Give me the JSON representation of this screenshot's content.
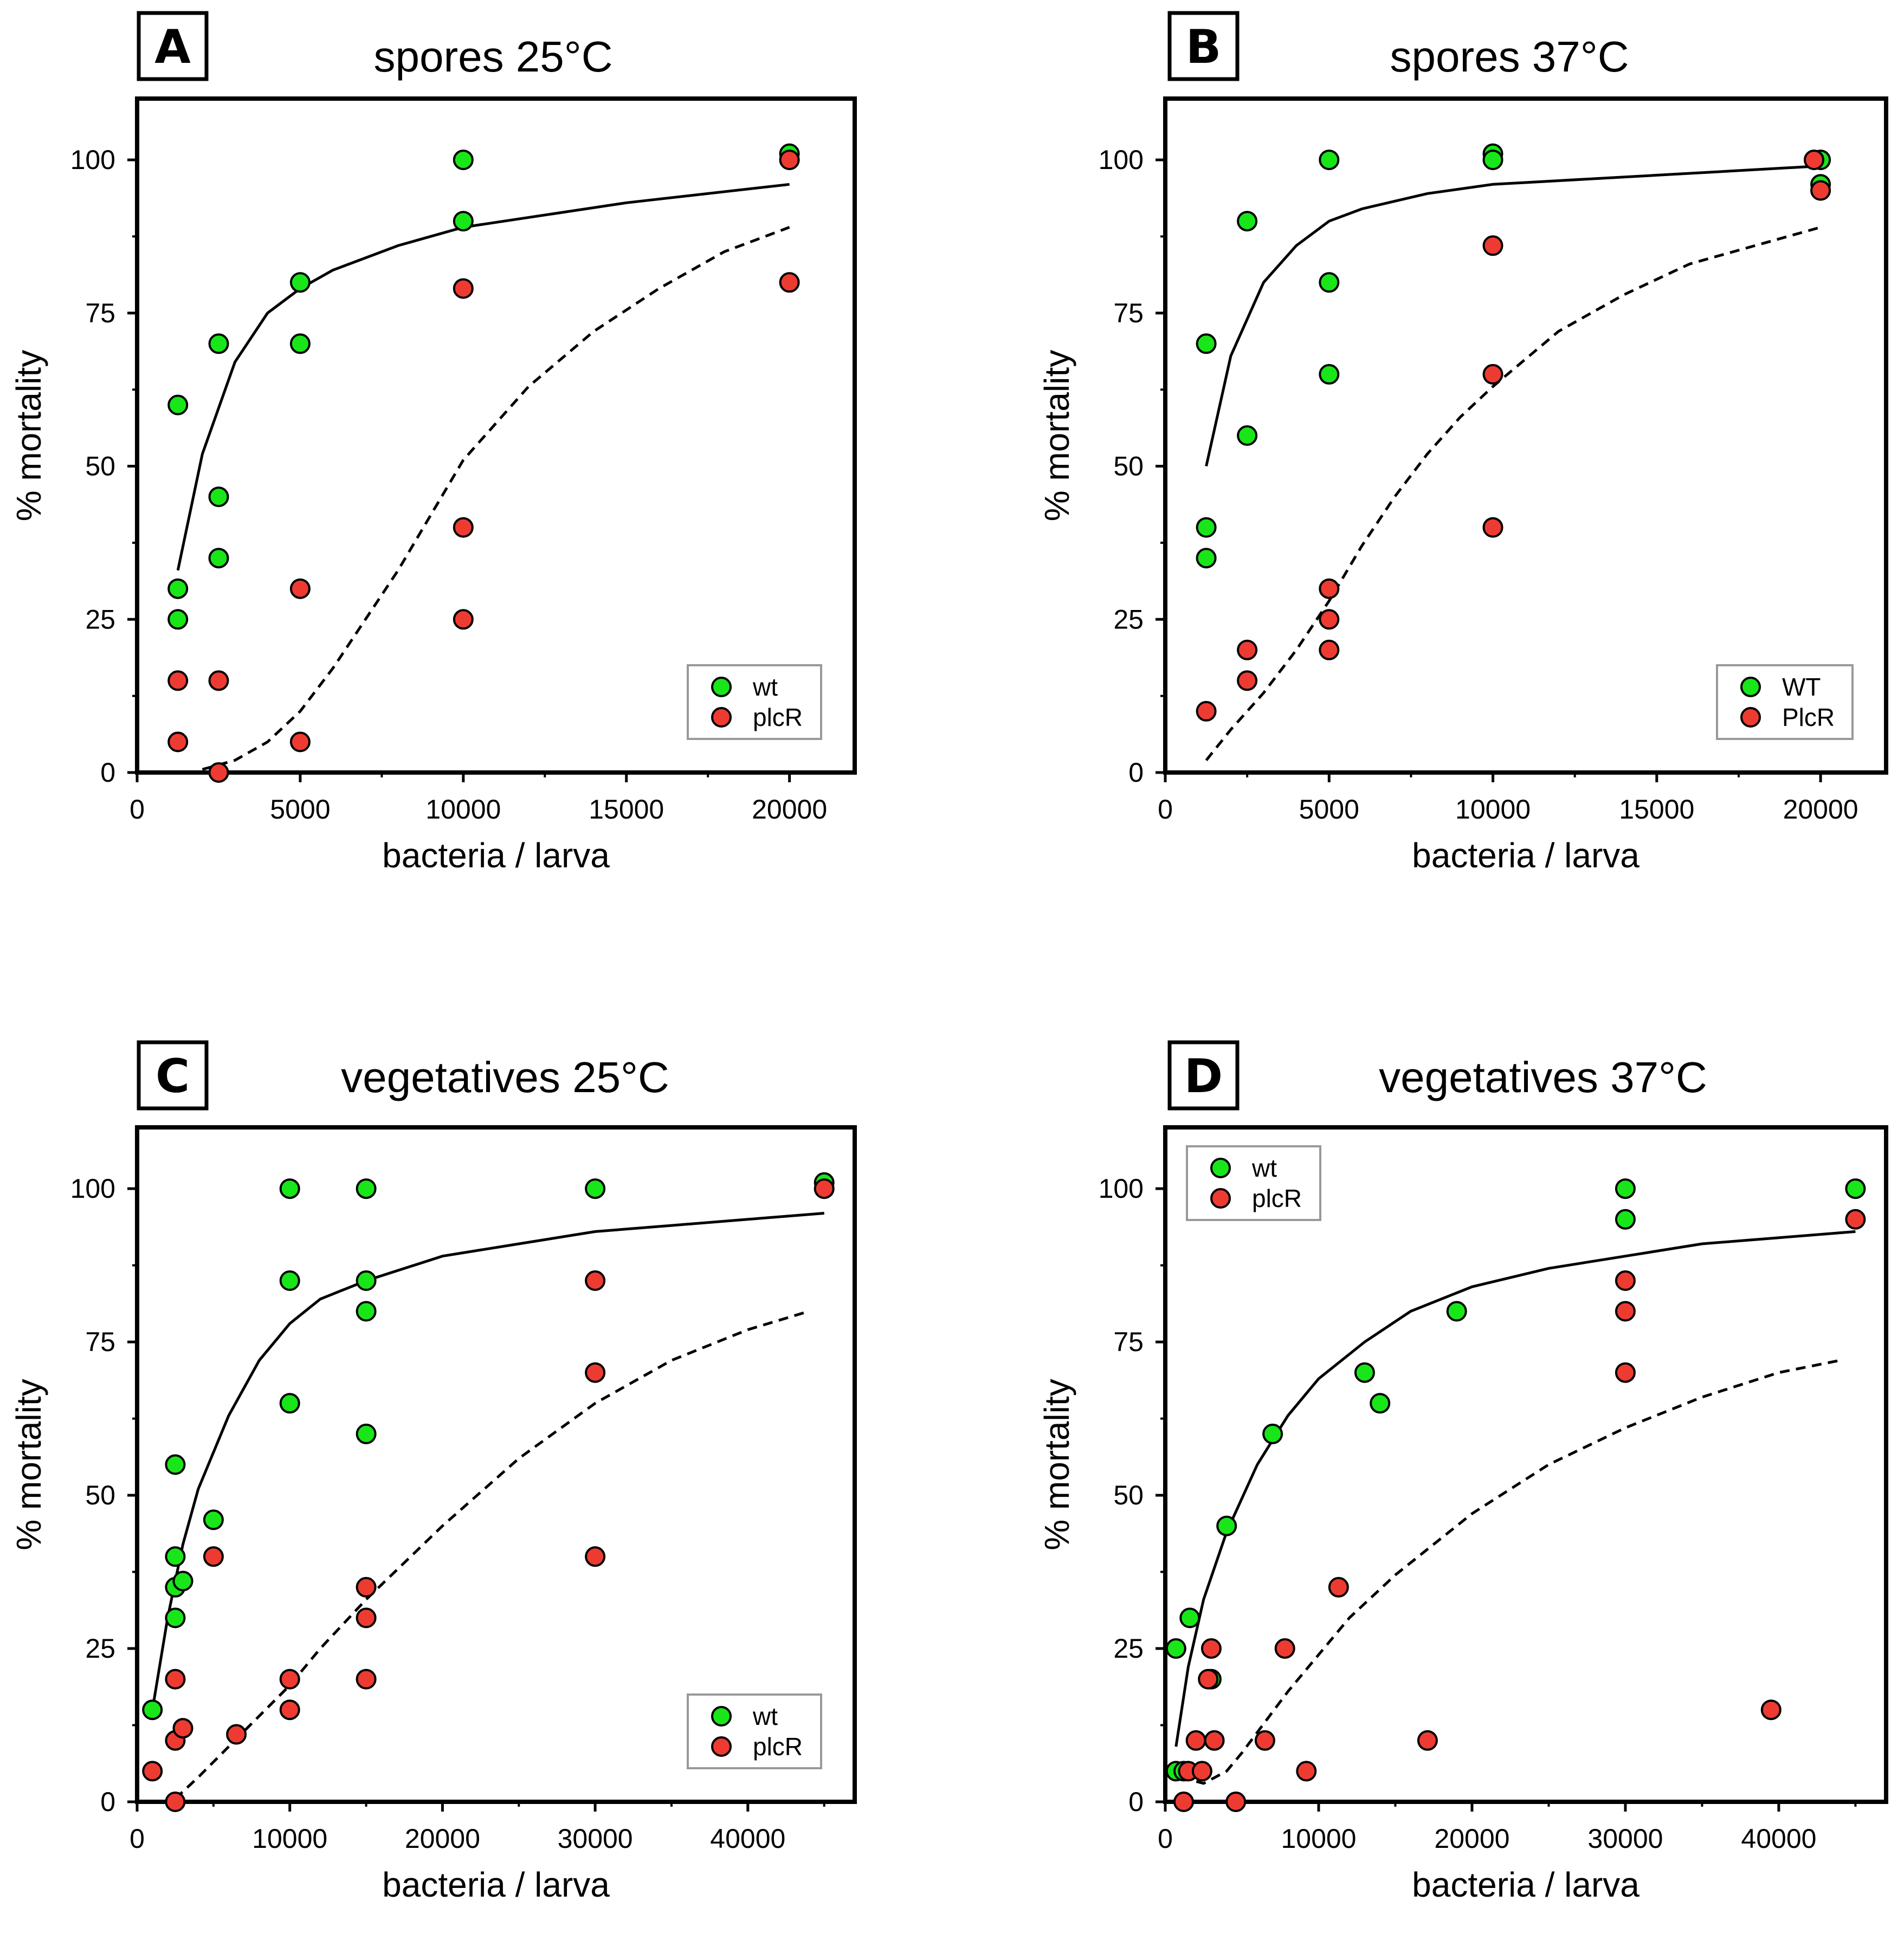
{
  "colors": {
    "wt": "#19e619",
    "mutant": "#ee3b32",
    "stroke": "#000000",
    "legend_border": "#999999"
  },
  "chart_data": [
    {
      "panel": "A",
      "type": "scatter",
      "title": "spores 25°C",
      "xlabel": "bacteria / larva",
      "ylabel": "% mortality",
      "xlim": [
        0,
        22000
      ],
      "ylim": [
        0,
        110
      ],
      "xticks": [
        0,
        5000,
        10000,
        15000,
        20000
      ],
      "yticks": [
        0,
        25,
        50,
        75,
        100
      ],
      "legend": {
        "position": "bottom-right",
        "labels": [
          "wt",
          "plcR"
        ]
      },
      "series": [
        {
          "name": "wt",
          "color_key": "wt",
          "points": [
            [
              1250,
              60
            ],
            [
              1250,
              30
            ],
            [
              1250,
              25
            ],
            [
              2500,
              70
            ],
            [
              2500,
              45
            ],
            [
              2500,
              35
            ],
            [
              5000,
              80
            ],
            [
              5000,
              70
            ],
            [
              10000,
              100
            ],
            [
              10000,
              90
            ],
            [
              20000,
              101
            ]
          ]
        },
        {
          "name": "plcR",
          "color_key": "mutant",
          "points": [
            [
              1250,
              15
            ],
            [
              1250,
              5
            ],
            [
              2500,
              15
            ],
            [
              2500,
              0
            ],
            [
              5000,
              30
            ],
            [
              5000,
              5
            ],
            [
              10000,
              79
            ],
            [
              10000,
              40
            ],
            [
              10000,
              25
            ],
            [
              20000,
              100
            ],
            [
              20000,
              80
            ]
          ]
        }
      ],
      "fits": [
        {
          "series": "wt",
          "style": "solid",
          "points": [
            [
              1250,
              33
            ],
            [
              2000,
              52
            ],
            [
              3000,
              67
            ],
            [
              4000,
              75
            ],
            [
              5000,
              79
            ],
            [
              6000,
              82
            ],
            [
              8000,
              86
            ],
            [
              10000,
              89
            ],
            [
              15000,
              93
            ],
            [
              20000,
              96
            ]
          ]
        },
        {
          "series": "plcR",
          "style": "dashed",
          "points": [
            [
              2000,
              0.5
            ],
            [
              3000,
              2
            ],
            [
              4000,
              5
            ],
            [
              5000,
              10
            ],
            [
              6000,
              17
            ],
            [
              7000,
              25
            ],
            [
              8000,
              33
            ],
            [
              9000,
              42
            ],
            [
              10000,
              51
            ],
            [
              12000,
              63
            ],
            [
              14000,
              72
            ],
            [
              16000,
              79
            ],
            [
              18000,
              85
            ],
            [
              20000,
              89
            ]
          ]
        }
      ]
    },
    {
      "panel": "B",
      "type": "scatter",
      "title": "spores 37°C",
      "xlabel": "bacteria / larva",
      "ylabel": "% mortality",
      "xlim": [
        0,
        22000
      ],
      "ylim": [
        0,
        110
      ],
      "xticks": [
        0,
        5000,
        10000,
        15000,
        20000
      ],
      "yticks": [
        0,
        25,
        50,
        75,
        100
      ],
      "legend": {
        "position": "bottom-right",
        "labels": [
          "WT",
          "PlcR"
        ]
      },
      "series": [
        {
          "name": "WT",
          "color_key": "wt",
          "points": [
            [
              1250,
              70
            ],
            [
              1250,
              40
            ],
            [
              1250,
              35
            ],
            [
              2500,
              90
            ],
            [
              2500,
              55
            ],
            [
              5000,
              100
            ],
            [
              5000,
              80
            ],
            [
              5000,
              65
            ],
            [
              10000,
              101
            ],
            [
              10000,
              100
            ],
            [
              20000,
              100
            ],
            [
              20000,
              96
            ]
          ]
        },
        {
          "name": "PlcR",
          "color_key": "mutant",
          "points": [
            [
              1250,
              10
            ],
            [
              2500,
              20
            ],
            [
              2500,
              15
            ],
            [
              5000,
              30
            ],
            [
              5000,
              25
            ],
            [
              5000,
              20
            ],
            [
              10000,
              86
            ],
            [
              10000,
              65
            ],
            [
              10000,
              40
            ],
            [
              19800,
              100
            ],
            [
              20000,
              95
            ]
          ]
        }
      ],
      "fits": [
        {
          "series": "WT",
          "style": "solid",
          "points": [
            [
              1250,
              50
            ],
            [
              2000,
              68
            ],
            [
              3000,
              80
            ],
            [
              4000,
              86
            ],
            [
              5000,
              90
            ],
            [
              6000,
              92
            ],
            [
              8000,
              94.5
            ],
            [
              10000,
              96
            ],
            [
              15000,
              97.5
            ],
            [
              20000,
              99
            ]
          ]
        },
        {
          "series": "PlcR",
          "style": "dashed",
          "points": [
            [
              1250,
              2
            ],
            [
              2000,
              7
            ],
            [
              3000,
              13
            ],
            [
              4000,
              20
            ],
            [
              5000,
              28
            ],
            [
              6000,
              37
            ],
            [
              7000,
              45
            ],
            [
              8000,
              52
            ],
            [
              9000,
              58
            ],
            [
              10000,
              63
            ],
            [
              12000,
              72
            ],
            [
              14000,
              78
            ],
            [
              16000,
              83
            ],
            [
              18000,
              86
            ],
            [
              20000,
              89
            ]
          ]
        }
      ]
    },
    {
      "panel": "C",
      "type": "scatter",
      "title": "vegetatives 25°C",
      "xlabel": "bacteria / larva",
      "ylabel": "% mortality",
      "xlim": [
        0,
        47000
      ],
      "ylim": [
        0,
        110
      ],
      "xticks": [
        0,
        10000,
        20000,
        30000,
        40000
      ],
      "yticks": [
        0,
        25,
        50,
        75,
        100
      ],
      "legend": {
        "position": "bottom-right",
        "labels": [
          "wt",
          "plcR"
        ]
      },
      "series": [
        {
          "name": "wt",
          "color_key": "wt",
          "points": [
            [
              1000,
              15
            ],
            [
              2500,
              55
            ],
            [
              2500,
              40
            ],
            [
              2500,
              35
            ],
            [
              2500,
              30
            ],
            [
              3000,
              36
            ],
            [
              5000,
              46
            ],
            [
              10000,
              100
            ],
            [
              10000,
              85
            ],
            [
              10000,
              65
            ],
            [
              15000,
              100
            ],
            [
              15000,
              85
            ],
            [
              15000,
              80
            ],
            [
              15000,
              60
            ],
            [
              30000,
              100
            ],
            [
              45000,
              101
            ]
          ]
        },
        {
          "name": "plcR",
          "color_key": "mutant",
          "points": [
            [
              1000,
              5
            ],
            [
              2500,
              20
            ],
            [
              2500,
              10
            ],
            [
              2500,
              0
            ],
            [
              3000,
              12
            ],
            [
              5000,
              40
            ],
            [
              6500,
              11
            ],
            [
              10000,
              20
            ],
            [
              10000,
              15
            ],
            [
              15000,
              35
            ],
            [
              15000,
              30
            ],
            [
              15000,
              20
            ],
            [
              30000,
              85
            ],
            [
              30000,
              70
            ],
            [
              30000,
              40
            ],
            [
              45000,
              100
            ]
          ]
        }
      ],
      "fits": [
        {
          "series": "wt",
          "style": "solid",
          "points": [
            [
              1000,
              15
            ],
            [
              2000,
              30
            ],
            [
              3000,
              42
            ],
            [
              4000,
              51
            ],
            [
              6000,
              63
            ],
            [
              8000,
              72
            ],
            [
              10000,
              78
            ],
            [
              12000,
              82
            ],
            [
              15000,
              85
            ],
            [
              20000,
              89
            ],
            [
              25000,
              91
            ],
            [
              30000,
              93
            ],
            [
              35000,
              94
            ],
            [
              40000,
              95
            ],
            [
              45000,
              96
            ]
          ]
        },
        {
          "series": "plcR",
          "style": "dashed",
          "points": [
            [
              2500,
              0.5
            ],
            [
              4000,
              4
            ],
            [
              6000,
              9
            ],
            [
              8000,
              14
            ],
            [
              10000,
              19
            ],
            [
              12000,
              25
            ],
            [
              15000,
              33
            ],
            [
              20000,
              45
            ],
            [
              25000,
              56
            ],
            [
              30000,
              65
            ],
            [
              35000,
              72
            ],
            [
              40000,
              77
            ],
            [
              44000,
              80
            ]
          ]
        }
      ]
    },
    {
      "panel": "D",
      "type": "scatter",
      "title": "vegetatives 37°C",
      "xlabel": "bacteria / larva",
      "ylabel": "% mortality",
      "xlim": [
        0,
        47000
      ],
      "ylim": [
        0,
        110
      ],
      "xticks": [
        0,
        10000,
        20000,
        30000,
        40000
      ],
      "yticks": [
        0,
        25,
        50,
        75,
        100
      ],
      "legend": {
        "position": "top-left",
        "labels": [
          "wt",
          "plcR"
        ]
      },
      "series": [
        {
          "name": "wt",
          "color_key": "wt",
          "points": [
            [
              700,
              25
            ],
            [
              700,
              5
            ],
            [
              1200,
              5
            ],
            [
              1600,
              30
            ],
            [
              3000,
              20
            ],
            [
              4000,
              45
            ],
            [
              7000,
              60
            ],
            [
              13000,
              70
            ],
            [
              14000,
              65
            ],
            [
              19000,
              80
            ],
            [
              30000,
              100
            ],
            [
              30000,
              95
            ],
            [
              45000,
              100
            ]
          ]
        },
        {
          "name": "plcR",
          "color_key": "mutant",
          "points": [
            [
              1200,
              0
            ],
            [
              1500,
              5
            ],
            [
              2000,
              10
            ],
            [
              2400,
              5
            ],
            [
              2800,
              20
            ],
            [
              3000,
              25
            ],
            [
              3200,
              10
            ],
            [
              4600,
              0
            ],
            [
              6500,
              10
            ],
            [
              7800,
              25
            ],
            [
              9200,
              5
            ],
            [
              11300,
              35
            ],
            [
              17100,
              10
            ],
            [
              30000,
              85
            ],
            [
              30000,
              80
            ],
            [
              30000,
              70
            ],
            [
              39500,
              15
            ],
            [
              45000,
              95
            ]
          ]
        }
      ],
      "fits": [
        {
          "series": "wt",
          "style": "solid",
          "points": [
            [
              700,
              9
            ],
            [
              1500,
              22
            ],
            [
              2500,
              33
            ],
            [
              4000,
              44
            ],
            [
              6000,
              55
            ],
            [
              8000,
              63
            ],
            [
              10000,
              69
            ],
            [
              13000,
              75
            ],
            [
              16000,
              80
            ],
            [
              20000,
              84
            ],
            [
              25000,
              87
            ],
            [
              30000,
              89
            ],
            [
              35000,
              91
            ],
            [
              40000,
              92
            ],
            [
              45000,
              93
            ]
          ]
        },
        {
          "series": "plcR",
          "style": "dashed",
          "points": [
            [
              1000,
              4
            ],
            [
              2500,
              3
            ],
            [
              4000,
              5
            ],
            [
              5000,
              8
            ],
            [
              6500,
              13
            ],
            [
              8000,
              18
            ],
            [
              10000,
              24
            ],
            [
              12000,
              30
            ],
            [
              15000,
              37
            ],
            [
              20000,
              47
            ],
            [
              25000,
              55
            ],
            [
              30000,
              61
            ],
            [
              35000,
              66
            ],
            [
              40000,
              70
            ],
            [
              44000,
              72
            ]
          ]
        }
      ]
    }
  ]
}
